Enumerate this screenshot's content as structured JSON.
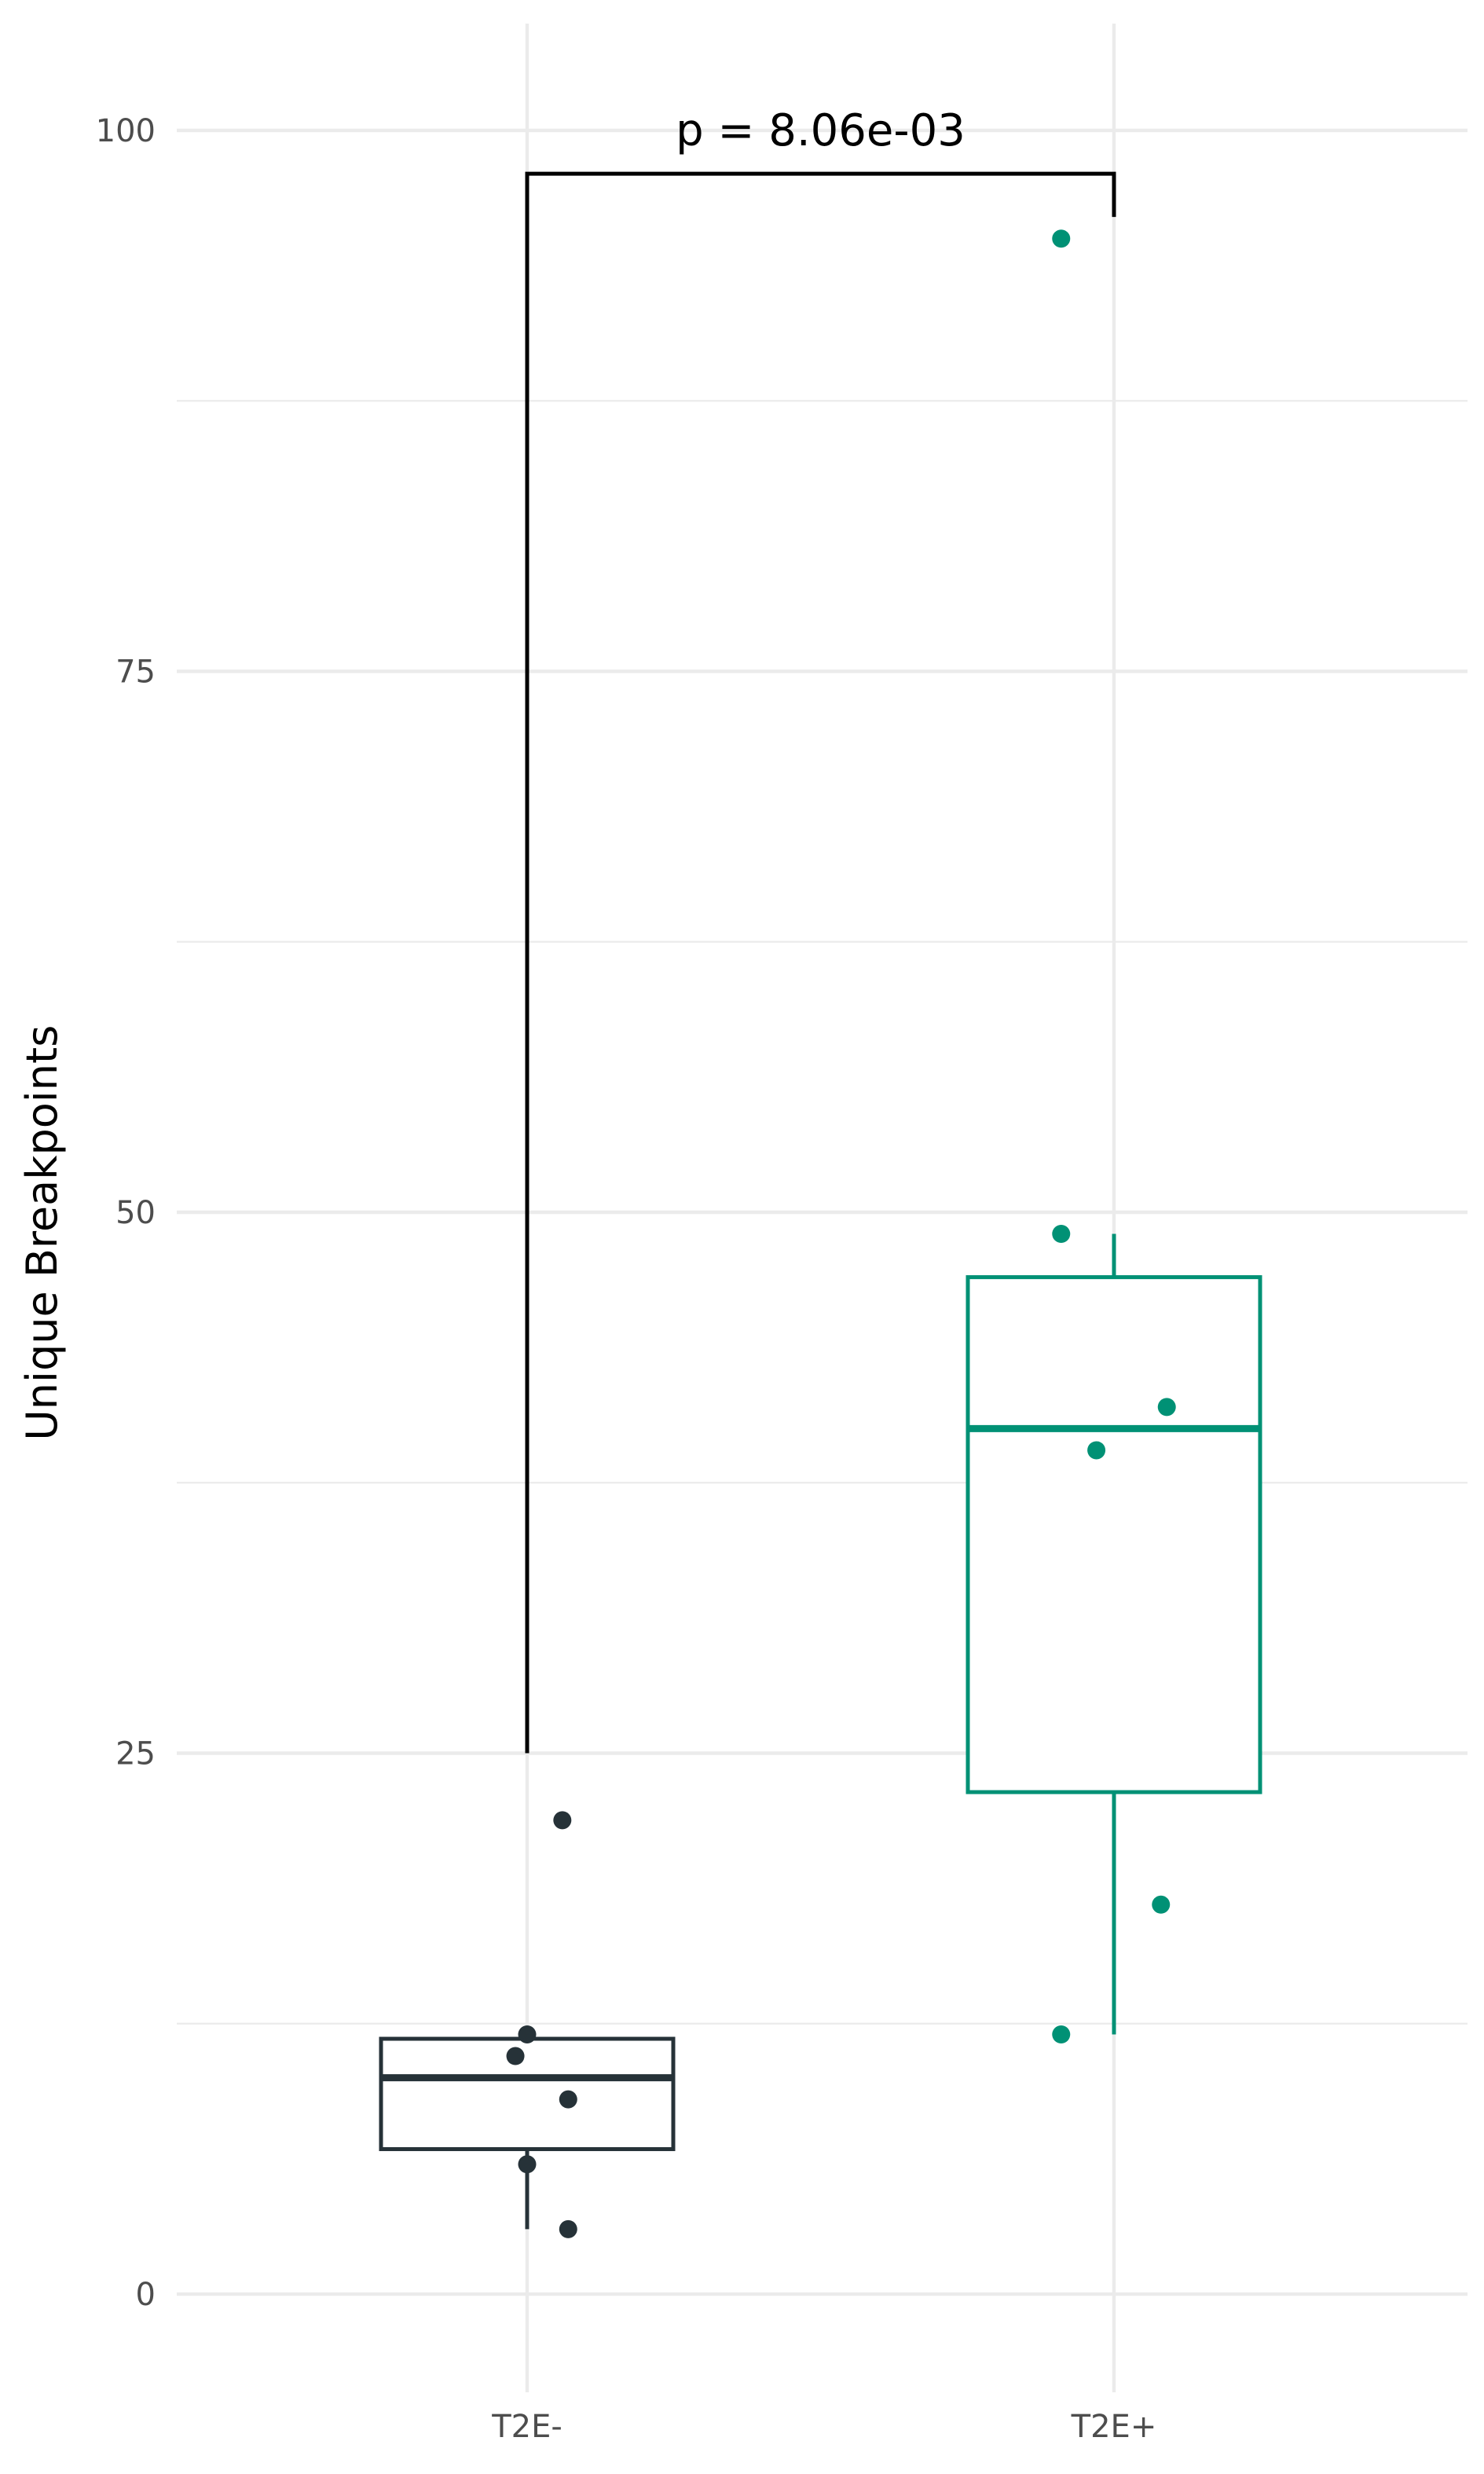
{
  "chart_data": {
    "type": "box",
    "ylabel": "Unique Breakpoints",
    "xlabel": "",
    "ylim": [
      -4,
      105
    ],
    "y_ticks": [
      0,
      25,
      50,
      75,
      100
    ],
    "y_tick_labels": [
      "0",
      "25",
      "50",
      "75",
      "100"
    ],
    "categories": [
      "T2E-",
      "T2E+"
    ],
    "grid": true,
    "groups": [
      {
        "category": "T2E-",
        "color": "#263238",
        "box": {
          "min": 3,
          "q1": 6.7,
          "median": 10,
          "q3": 11.8,
          "max": 11.8
        },
        "points": [
          {
            "x_offset": 0.06,
            "y": 21.9
          },
          {
            "x_offset": 0.0,
            "y": 12.0
          },
          {
            "x_offset": -0.02,
            "y": 11.0
          },
          {
            "x_offset": 0.07,
            "y": 9.0
          },
          {
            "x_offset": 0.0,
            "y": 6.0
          },
          {
            "x_offset": 0.07,
            "y": 3.0
          }
        ]
      },
      {
        "category": "T2E+",
        "color": "#009175",
        "box": {
          "min": 12,
          "q1": 23.2,
          "median": 40,
          "q3": 47,
          "max": 49
        },
        "points": [
          {
            "x_offset": -0.09,
            "y": 95
          },
          {
            "x_offset": -0.09,
            "y": 49
          },
          {
            "x_offset": 0.09,
            "y": 41
          },
          {
            "x_offset": -0.03,
            "y": 39
          },
          {
            "x_offset": 0.08,
            "y": 18
          },
          {
            "x_offset": -0.09,
            "y": 12
          }
        ]
      }
    ],
    "comparison": {
      "label": "p = 8.06e-03",
      "from": "T2E-",
      "to": "T2E+",
      "bracket_y": 98,
      "left_end_y": 25,
      "right_end_y": 96
    }
  }
}
